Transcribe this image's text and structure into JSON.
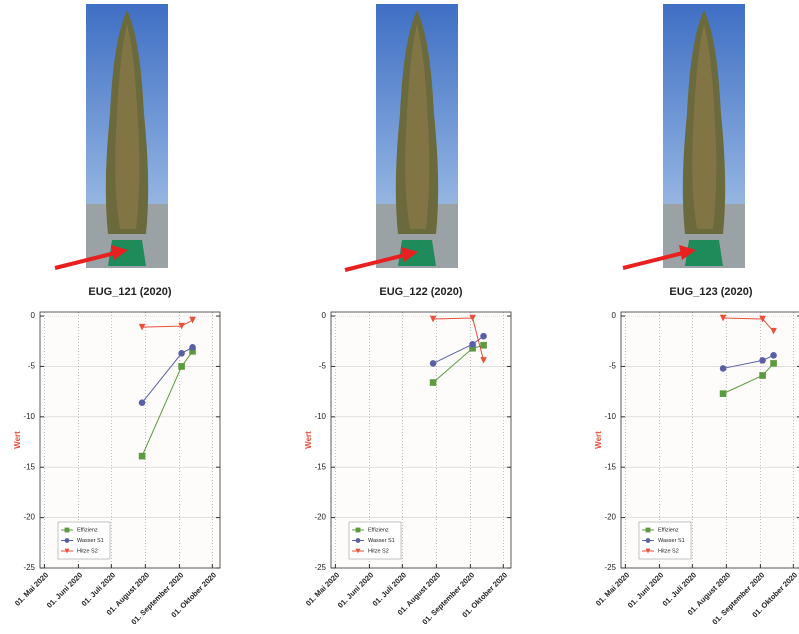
{
  "chart_data": [
    {
      "type": "line",
      "title": "EUG_121 (2020)",
      "ylabel": "Wert",
      "x": [
        "2020-07-29",
        "2020-09-03",
        "2020-09-13"
      ],
      "xlim": [
        "2020-04-27",
        "2020-10-08"
      ],
      "xticks": [
        {
          "value": "2020-05-01",
          "label": "01. Mai 2020"
        },
        {
          "value": "2020-06-01",
          "label": "01. Juni 2020"
        },
        {
          "value": "2020-07-01",
          "label": "01. Juli 2020"
        },
        {
          "value": "2020-08-01",
          "label": "01. August 2020"
        },
        {
          "value": "2020-09-01",
          "label": "01. September 2020"
        },
        {
          "value": "2020-10-01",
          "label": "01. Oktober 2020"
        }
      ],
      "ylim": [
        -25,
        0.4
      ],
      "yticks": [
        0,
        -5,
        -10,
        -15,
        -20,
        -25
      ],
      "grid": true,
      "legend": "lower left",
      "series": [
        {
          "name": "Effizienz",
          "color": "#5b9a3e",
          "marker": "square",
          "values": [
            -13.9,
            -5.0,
            -3.5
          ]
        },
        {
          "name": "Wasser S1",
          "color": "#5960a8",
          "marker": "circle",
          "values": [
            -8.6,
            -3.7,
            -3.1
          ]
        },
        {
          "name": "Hitze S2",
          "color": "#e8503a",
          "marker": "triangle-down",
          "values": [
            -1.1,
            -1.0,
            -0.4
          ]
        }
      ]
    },
    {
      "type": "line",
      "title": "EUG_122 (2020)",
      "ylabel": "Wert",
      "x": [
        "2020-07-29",
        "2020-09-03",
        "2020-09-13"
      ],
      "xlim": [
        "2020-04-27",
        "2020-10-08"
      ],
      "xticks": [
        {
          "value": "2020-05-01",
          "label": "01. Mai 2020"
        },
        {
          "value": "2020-06-01",
          "label": "01. Juni 2020"
        },
        {
          "value": "2020-07-01",
          "label": "01. Juli 2020"
        },
        {
          "value": "2020-08-01",
          "label": "01. August 2020"
        },
        {
          "value": "2020-09-01",
          "label": "01. September 2020"
        },
        {
          "value": "2020-10-01",
          "label": "01. Oktober 2020"
        }
      ],
      "ylim": [
        -25,
        0.4
      ],
      "yticks": [
        0,
        -5,
        -10,
        -15,
        -20,
        -25
      ],
      "grid": true,
      "legend": "lower left",
      "series": [
        {
          "name": "Effizienz",
          "color": "#5b9a3e",
          "marker": "square",
          "values": [
            -6.6,
            -3.2,
            -2.9
          ]
        },
        {
          "name": "Wasser S1",
          "color": "#5960a8",
          "marker": "circle",
          "values": [
            -4.7,
            -2.8,
            -2.0
          ]
        },
        {
          "name": "Hitze S2",
          "color": "#e8503a",
          "marker": "triangle-down",
          "values": [
            -0.3,
            -0.2,
            -4.4
          ]
        }
      ]
    },
    {
      "type": "line",
      "title": "EUG_123 (2020)",
      "ylabel": "Wert",
      "x": [
        "2020-07-29",
        "2020-09-03",
        "2020-09-13"
      ],
      "xlim": [
        "2020-04-27",
        "2020-10-08"
      ],
      "xticks": [
        {
          "value": "2020-05-01",
          "label": "01. Mai 2020"
        },
        {
          "value": "2020-06-01",
          "label": "01. Juni 2020"
        },
        {
          "value": "2020-07-01",
          "label": "01. Juli 2020"
        },
        {
          "value": "2020-08-01",
          "label": "01. August 2020"
        },
        {
          "value": "2020-09-01",
          "label": "01. September 2020"
        },
        {
          "value": "2020-10-01",
          "label": "01. Oktober 2020"
        }
      ],
      "ylim": [
        -25,
        0.4
      ],
      "yticks": [
        0,
        -5,
        -10,
        -15,
        -20,
        -25
      ],
      "grid": true,
      "legend": "lower left",
      "series": [
        {
          "name": "Effizienz",
          "color": "#5b9a3e",
          "marker": "square",
          "values": [
            -7.7,
            -5.9,
            -4.7
          ]
        },
        {
          "name": "Wasser S1",
          "color": "#5960a8",
          "marker": "circle",
          "values": [
            -5.2,
            -4.4,
            -3.9
          ]
        },
        {
          "name": "Hitze S2",
          "color": "#e8503a",
          "marker": "triangle-down",
          "values": [
            -0.2,
            -0.3,
            -1.5
          ]
        }
      ]
    }
  ]
}
